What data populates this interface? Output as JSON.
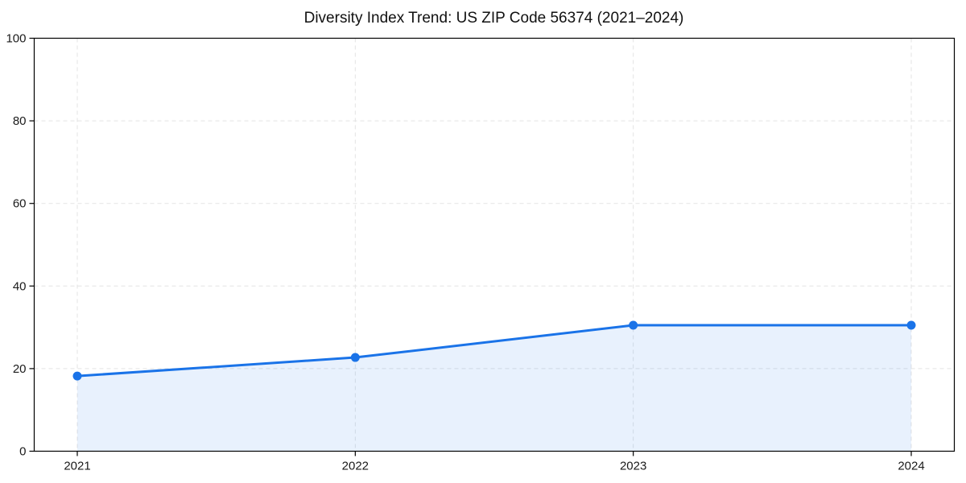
{
  "figure": {
    "background": "#ffffff"
  },
  "chart_data": {
    "type": "area",
    "title": "Diversity Index Trend: US ZIP Code 56374 (2021–2024)",
    "xlabel": "",
    "ylabel": "",
    "x": [
      2021,
      2022,
      2023,
      2024
    ],
    "xticks": [
      2021,
      2022,
      2023,
      2024
    ],
    "yticks": [
      0,
      20,
      40,
      60,
      80,
      100
    ],
    "ylim": [
      0,
      100
    ],
    "series": [
      {
        "name": "Diversity Index",
        "values": [
          18.2,
          22.7,
          30.5,
          30.5
        ],
        "marker": "circle"
      }
    ],
    "grid": true,
    "grid_style": "dashed",
    "legend": false,
    "line_color": "#1a73e8",
    "marker_color": "#1a73e8",
    "fill_color": "rgba(26,115,232,0.10)",
    "grid_color": "#e3e3e3",
    "axis_color": "#000000",
    "tick_label_color": "#1a1a1a"
  }
}
